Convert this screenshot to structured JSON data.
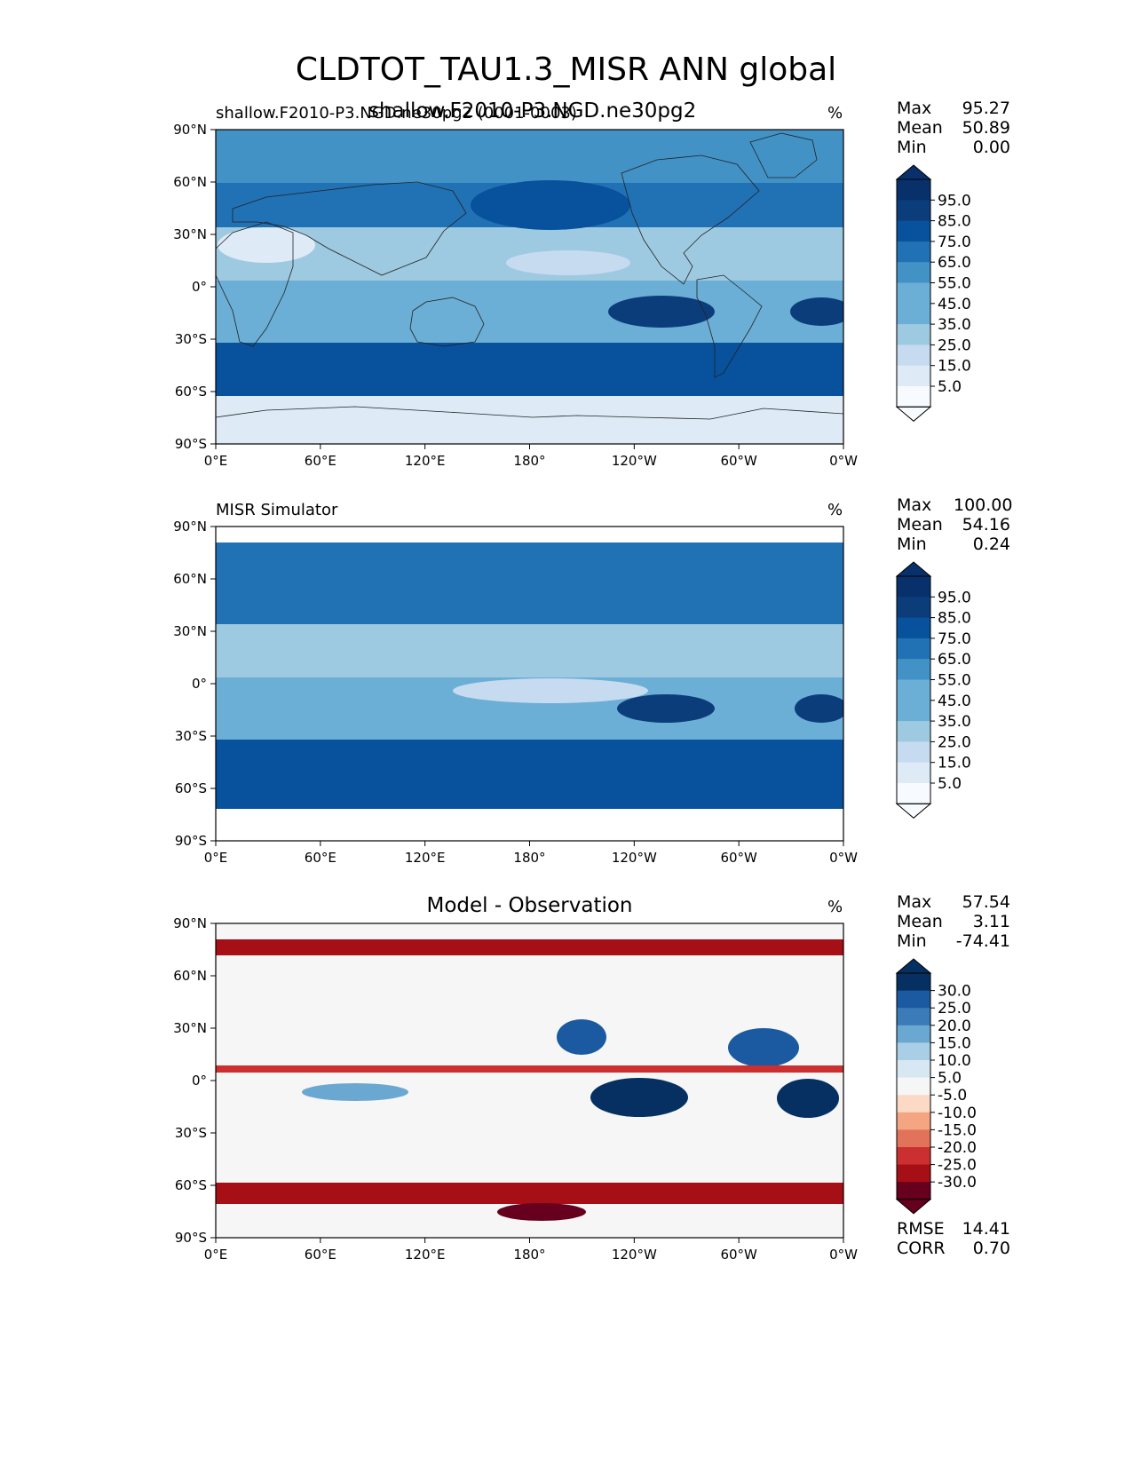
{
  "figure_title": "CLDTOT_TAU1.3_MISR ANN global",
  "overlapping_subtitle": "shallow.F2010-P3.NGD.ne30pg2",
  "colors": {
    "blues": [
      "#f7fbff",
      "#deebf7",
      "#c6dbef",
      "#9ecae1",
      "#6baed6",
      "#4292c6",
      "#2171b5",
      "#08519c",
      "#0b3d7a",
      "#08306b"
    ],
    "diverging": [
      "#67001f",
      "#a50f15",
      "#cb2f2f",
      "#e0735a",
      "#f4a582",
      "#fcd9c4",
      "#f6f6f6",
      "#d8e8f3",
      "#a9cfe6",
      "#6aa8d2",
      "#3a7bb8",
      "#1b5aa0",
      "#053061"
    ]
  },
  "chart_data": [
    {
      "type": "heatmap",
      "panel": "model",
      "title": "shallow.F2010-P3.NGD.ne30pg2 (0001-0003)",
      "units": "%",
      "xticks": [
        "0°E",
        "60°E",
        "120°E",
        "180°",
        "120°W",
        "60°W",
        "0°W"
      ],
      "yticks": [
        "90°N",
        "60°N",
        "30°N",
        "0°",
        "30°S",
        "60°S",
        "90°S"
      ],
      "xlim": [
        0,
        360
      ],
      "ylim": [
        -90,
        90
      ],
      "colorbar": {
        "levels": [
          "95.0",
          "85.0",
          "75.0",
          "65.0",
          "55.0",
          "45.0",
          "35.0",
          "25.0",
          "15.0",
          "5.0"
        ],
        "extend": "both"
      },
      "stats": {
        "max": {
          "label": "Max",
          "value": "95.27"
        },
        "mean": {
          "label": "Mean",
          "value": "50.89"
        },
        "min": {
          "label": "Min",
          "value": "0.00"
        }
      }
    },
    {
      "type": "heatmap",
      "panel": "observation",
      "title": "MISR Simulator",
      "units": "%",
      "xticks": [
        "0°E",
        "60°E",
        "120°E",
        "180°",
        "120°W",
        "60°W",
        "0°W"
      ],
      "yticks": [
        "90°N",
        "60°N",
        "30°N",
        "0°",
        "30°S",
        "60°S",
        "90°S"
      ],
      "xlim": [
        0,
        360
      ],
      "ylim": [
        -90,
        90
      ],
      "colorbar": {
        "levels": [
          "95.0",
          "85.0",
          "75.0",
          "65.0",
          "55.0",
          "45.0",
          "35.0",
          "25.0",
          "15.0",
          "5.0"
        ],
        "extend": "both"
      },
      "stats": {
        "max": {
          "label": "Max",
          "value": "100.00"
        },
        "mean": {
          "label": "Mean",
          "value": "54.16"
        },
        "min": {
          "label": "Min",
          "value": "0.24"
        }
      }
    },
    {
      "type": "heatmap",
      "panel": "difference",
      "title": "Model - Observation",
      "units": "%",
      "xticks": [
        "0°E",
        "60°E",
        "120°E",
        "180°",
        "120°W",
        "60°W",
        "0°W"
      ],
      "yticks": [
        "90°N",
        "60°N",
        "30°N",
        "0°",
        "30°S",
        "60°S",
        "90°S"
      ],
      "xlim": [
        0,
        360
      ],
      "ylim": [
        -90,
        90
      ],
      "colorbar": {
        "levels": [
          "30.0",
          "25.0",
          "20.0",
          "15.0",
          "10.0",
          "5.0",
          "-5.0",
          "-10.0",
          "-15.0",
          "-20.0",
          "-25.0",
          "-30.0"
        ],
        "extend": "both"
      },
      "stats": {
        "max": {
          "label": "Max",
          "value": "57.54"
        },
        "mean": {
          "label": "Mean",
          "value": "3.11"
        },
        "min": {
          "label": "Min",
          "value": "-74.41"
        }
      },
      "metrics": {
        "rmse": {
          "label": "RMSE",
          "value": "14.41"
        },
        "corr": {
          "label": "CORR",
          "value": "0.70"
        }
      }
    }
  ]
}
